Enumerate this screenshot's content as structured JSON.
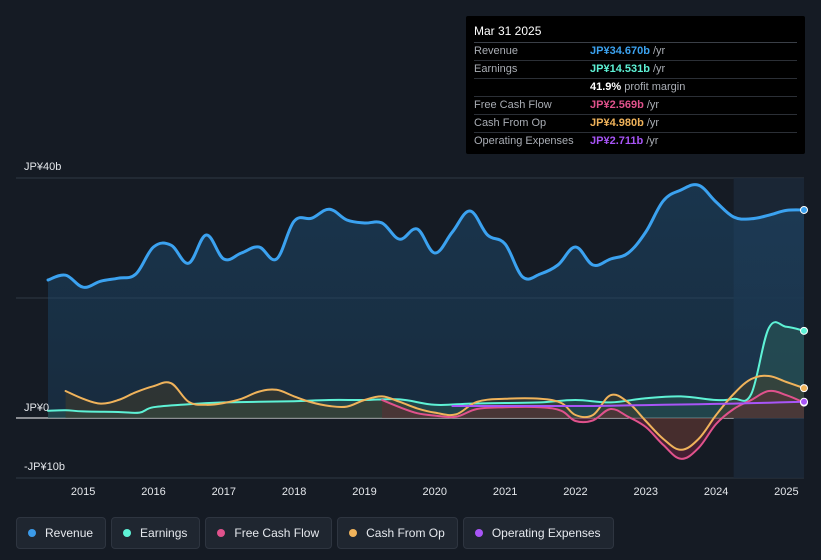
{
  "tooltip": {
    "date": "Mar 31 2025",
    "rows": [
      {
        "label": "Revenue",
        "value": "JP¥34.670b",
        "unit": "/yr",
        "color": "#3ba2f0"
      },
      {
        "label": "Earnings",
        "value": "JP¥14.531b",
        "unit": "/yr",
        "color": "#5ef2d6"
      },
      {
        "label": "",
        "value": "41.9%",
        "unit": "profit margin",
        "color": "#ffffff"
      },
      {
        "label": "Free Cash Flow",
        "value": "JP¥2.569b",
        "unit": "/yr",
        "color": "#e0528c"
      },
      {
        "label": "Cash From Op",
        "value": "JP¥4.980b",
        "unit": "/yr",
        "color": "#f0b35b"
      },
      {
        "label": "Operating Expenses",
        "value": "JP¥2.711b",
        "unit": "/yr",
        "color": "#a855f7"
      }
    ]
  },
  "legend": [
    {
      "label": "Revenue",
      "color": "#3b9ae8"
    },
    {
      "label": "Earnings",
      "color": "#5ef2d6"
    },
    {
      "label": "Free Cash Flow",
      "color": "#e0528c"
    },
    {
      "label": "Cash From Op",
      "color": "#f0b35b"
    },
    {
      "label": "Operating Expenses",
      "color": "#a855f7"
    }
  ],
  "chart_data": {
    "type": "line",
    "title": "",
    "xlabel": "",
    "ylabel": "",
    "ylim": [
      -10,
      40
    ],
    "y_tick_labels": [
      {
        "value": 40,
        "label": "JP¥40b"
      },
      {
        "value": 0,
        "label": "JP¥0"
      },
      {
        "value": -10,
        "label": "-JP¥10b"
      }
    ],
    "xlim": [
      2014.5,
      2025.25
    ],
    "x_tick_labels": [
      "2015",
      "2016",
      "2017",
      "2018",
      "2019",
      "2020",
      "2021",
      "2022",
      "2023",
      "2024",
      "2025"
    ],
    "x_tick_values": [
      2015,
      2016,
      2017,
      2018,
      2019,
      2020,
      2021,
      2022,
      2023,
      2024,
      2025
    ],
    "forecast_start": 2024.25,
    "series": [
      {
        "name": "Revenue",
        "color": "#3ba2f0",
        "x_start": 2014.5,
        "fill": true,
        "points": [
          [
            2014.5,
            23
          ],
          [
            2014.75,
            23.8
          ],
          [
            2015.0,
            21.8
          ],
          [
            2015.25,
            22.8
          ],
          [
            2015.5,
            23.3
          ],
          [
            2015.75,
            24
          ],
          [
            2016.0,
            28.5
          ],
          [
            2016.25,
            28.8
          ],
          [
            2016.5,
            25.8
          ],
          [
            2016.75,
            30.5
          ],
          [
            2017.0,
            26.5
          ],
          [
            2017.25,
            27.5
          ],
          [
            2017.5,
            28.5
          ],
          [
            2017.75,
            26.5
          ],
          [
            2018.0,
            32.8
          ],
          [
            2018.25,
            33.3
          ],
          [
            2018.5,
            34.8
          ],
          [
            2018.75,
            33
          ],
          [
            2019.0,
            32.5
          ],
          [
            2019.25,
            32.5
          ],
          [
            2019.5,
            29.8
          ],
          [
            2019.75,
            31.5
          ],
          [
            2020.0,
            27.5
          ],
          [
            2020.25,
            31
          ],
          [
            2020.5,
            34.5
          ],
          [
            2020.75,
            30.5
          ],
          [
            2021.0,
            29
          ],
          [
            2021.25,
            23.5
          ],
          [
            2021.5,
            24
          ],
          [
            2021.75,
            25.5
          ],
          [
            2022.0,
            28.5
          ],
          [
            2022.25,
            25.5
          ],
          [
            2022.5,
            26.5
          ],
          [
            2022.75,
            27.5
          ],
          [
            2023.0,
            31
          ],
          [
            2023.25,
            36.2
          ],
          [
            2023.5,
            38
          ],
          [
            2023.75,
            38.8
          ],
          [
            2024.0,
            36
          ],
          [
            2024.25,
            33.5
          ],
          [
            2024.5,
            33.2
          ],
          [
            2024.75,
            33.8
          ],
          [
            2025.0,
            34.6
          ],
          [
            2025.25,
            34.67
          ]
        ]
      },
      {
        "name": "Earnings",
        "color": "#5ef2d6",
        "x_start": 2014.5,
        "fill": true,
        "points": [
          [
            2014.5,
            1.2
          ],
          [
            2014.75,
            1.3
          ],
          [
            2015.0,
            1.1
          ],
          [
            2015.5,
            1
          ],
          [
            2015.8,
            0.9
          ],
          [
            2016.0,
            1.8
          ],
          [
            2016.5,
            2.3
          ],
          [
            2017.0,
            2.6
          ],
          [
            2017.5,
            2.7
          ],
          [
            2018.0,
            2.8
          ],
          [
            2018.5,
            3
          ],
          [
            2019.0,
            3
          ],
          [
            2019.5,
            3.1
          ],
          [
            2020.0,
            2.2
          ],
          [
            2020.5,
            2.4
          ],
          [
            2021.0,
            2.5
          ],
          [
            2021.5,
            2.6
          ],
          [
            2022.0,
            3
          ],
          [
            2022.5,
            2.6
          ],
          [
            2023.0,
            3.3
          ],
          [
            2023.5,
            3.6
          ],
          [
            2024.0,
            3
          ],
          [
            2024.25,
            3.2
          ],
          [
            2024.5,
            4
          ],
          [
            2024.75,
            15
          ],
          [
            2025.0,
            15.2
          ],
          [
            2025.25,
            14.53
          ]
        ]
      },
      {
        "name": "Free Cash Flow",
        "color": "#e0528c",
        "x_start": 2019.25,
        "fill": true,
        "points": [
          [
            2019.25,
            3
          ],
          [
            2019.5,
            1.8
          ],
          [
            2019.75,
            0.8
          ],
          [
            2020.0,
            0.4
          ],
          [
            2020.3,
            0.2
          ],
          [
            2020.6,
            1.5
          ],
          [
            2021.0,
            1.8
          ],
          [
            2021.5,
            1.8
          ],
          [
            2021.8,
            1.2
          ],
          [
            2022.0,
            -0.5
          ],
          [
            2022.25,
            -0.4
          ],
          [
            2022.5,
            1.5
          ],
          [
            2022.75,
            0.2
          ],
          [
            2023.0,
            -1.5
          ],
          [
            2023.25,
            -4.5
          ],
          [
            2023.5,
            -6.8
          ],
          [
            2023.75,
            -5
          ],
          [
            2024.0,
            -1
          ],
          [
            2024.25,
            1.5
          ],
          [
            2024.5,
            3
          ],
          [
            2024.75,
            4.5
          ],
          [
            2025.0,
            3.8
          ],
          [
            2025.25,
            2.57
          ]
        ]
      },
      {
        "name": "Cash From Op",
        "color": "#f0b35b",
        "x_start": 2014.75,
        "fill": true,
        "points": [
          [
            2014.75,
            4.5
          ],
          [
            2015.0,
            3.2
          ],
          [
            2015.25,
            2.4
          ],
          [
            2015.5,
            3
          ],
          [
            2015.75,
            4.3
          ],
          [
            2016.0,
            5.3
          ],
          [
            2016.25,
            5.8
          ],
          [
            2016.5,
            2.7
          ],
          [
            2016.75,
            2.2
          ],
          [
            2017.0,
            2.5
          ],
          [
            2017.25,
            3.2
          ],
          [
            2017.5,
            4.4
          ],
          [
            2017.75,
            4.7
          ],
          [
            2018.0,
            3.6
          ],
          [
            2018.25,
            2.6
          ],
          [
            2018.5,
            2
          ],
          [
            2018.75,
            1.9
          ],
          [
            2019.0,
            3
          ],
          [
            2019.25,
            3.6
          ],
          [
            2019.5,
            2.7
          ],
          [
            2019.75,
            1.6
          ],
          [
            2020.0,
            0.9
          ],
          [
            2020.3,
            0.6
          ],
          [
            2020.6,
            2.7
          ],
          [
            2021.0,
            3.2
          ],
          [
            2021.5,
            3.2
          ],
          [
            2021.8,
            2.5
          ],
          [
            2022.0,
            0.5
          ],
          [
            2022.25,
            0.5
          ],
          [
            2022.5,
            3.8
          ],
          [
            2022.75,
            2.6
          ],
          [
            2023.0,
            -0.5
          ],
          [
            2023.25,
            -3.5
          ],
          [
            2023.5,
            -5.3
          ],
          [
            2023.75,
            -3.5
          ],
          [
            2024.0,
            0.5
          ],
          [
            2024.25,
            4
          ],
          [
            2024.5,
            6.5
          ],
          [
            2024.75,
            7
          ],
          [
            2025.0,
            6
          ],
          [
            2025.25,
            4.98
          ]
        ]
      },
      {
        "name": "Operating Expenses",
        "color": "#a855f7",
        "x_start": 2020.25,
        "fill": false,
        "points": [
          [
            2020.25,
            2.0
          ],
          [
            2020.75,
            2.0
          ],
          [
            2021.25,
            2.0
          ],
          [
            2021.75,
            2.0
          ],
          [
            2022.25,
            2.0
          ],
          [
            2022.75,
            2.1
          ],
          [
            2023.25,
            2.2
          ],
          [
            2023.75,
            2.3
          ],
          [
            2024.25,
            2.4
          ],
          [
            2024.75,
            2.55
          ],
          [
            2025.25,
            2.711
          ]
        ]
      }
    ]
  }
}
